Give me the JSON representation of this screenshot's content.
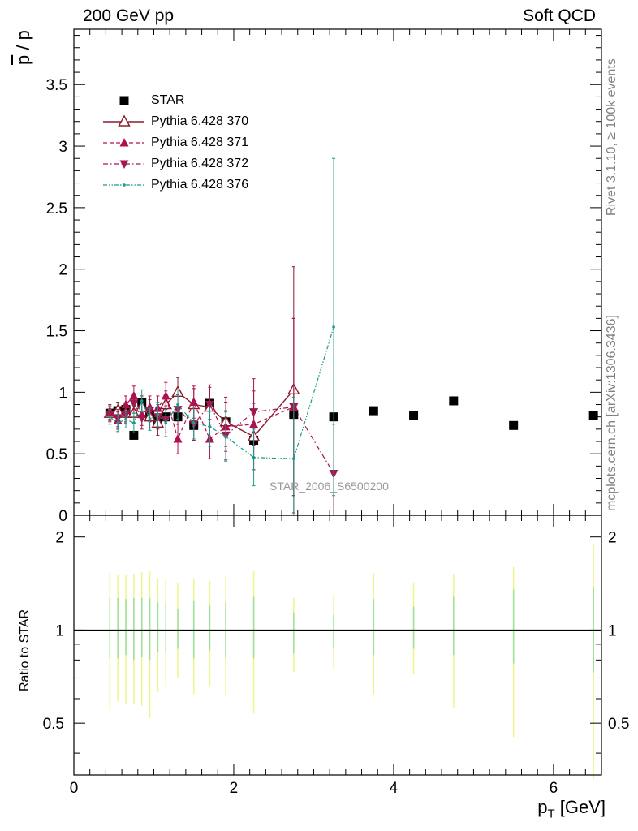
{
  "header": {
    "left": "200 GeV pp",
    "right": "Soft QCD"
  },
  "side_labels": {
    "rivet": "Rivet 3.1.10, ≥ 100k events",
    "mcplots": "mcplots.cern.ch [arXiv:1306.3436]"
  },
  "analysis_label": "STAR_2006_S6500200",
  "colors": {
    "star": "#000000",
    "p370": "#8b1a2b",
    "p371": "#b0104f",
    "p372": "#a0184e",
    "p376": "#1a9a8a",
    "ratio_band_outer": "#eef58a",
    "ratio_band_inner": "#9be09b"
  },
  "chart_data": [
    {
      "type": "scatter",
      "title": "",
      "ylabel_main": "p",
      "ylabel_over": "p",
      "ylabel_sep": " / ",
      "xlabel": "p",
      "xlabel_sub": "T",
      "xlabel_unit": " [GeV]",
      "xlim": [
        0,
        6.6
      ],
      "ylim": [
        0,
        3.95
      ],
      "xticks": [
        "0",
        "2",
        "4",
        "6"
      ],
      "yticks": [
        "0",
        "0.5",
        "1",
        "1.5",
        "2",
        "2.5",
        "3",
        "3.5"
      ],
      "legend_position": "top-left",
      "series": [
        {
          "name": "STAR",
          "marker": "square",
          "x": [
            0.45,
            0.55,
            0.65,
            0.75,
            0.85,
            0.95,
            1.05,
            1.15,
            1.3,
            1.5,
            1.7,
            1.9,
            2.25,
            2.75,
            3.25,
            3.75,
            4.25,
            4.75,
            5.5,
            6.5
          ],
          "y": [
            0.83,
            0.85,
            0.86,
            0.65,
            0.92,
            0.82,
            0.78,
            0.8,
            0.8,
            0.73,
            0.91,
            0.76,
            0.61,
            0.82,
            0.8,
            0.85,
            0.81,
            0.93,
            0.73,
            0.81
          ]
        },
        {
          "name": "Pythia 6.428 370",
          "marker": "triangle-up-open",
          "linestyle": "solid",
          "x": [
            0.45,
            0.55,
            0.65,
            0.75,
            0.85,
            0.95,
            1.05,
            1.15,
            1.3,
            1.5,
            1.7,
            1.9,
            2.25,
            2.75
          ],
          "y": [
            0.83,
            0.85,
            0.83,
            0.83,
            0.88,
            0.8,
            0.75,
            0.9,
            1.0,
            0.9,
            0.88,
            0.76,
            0.64,
            1.02
          ],
          "yerr": [
            0.06,
            0.07,
            0.07,
            0.08,
            0.09,
            0.09,
            0.1,
            0.11,
            0.12,
            0.13,
            0.16,
            0.2,
            0.27,
            1.0
          ]
        },
        {
          "name": "Pythia 6.428 371",
          "marker": "triangle-up",
          "linestyle": "dashed",
          "x": [
            0.45,
            0.55,
            0.65,
            0.75,
            0.85,
            0.95,
            1.05,
            1.15,
            1.3,
            1.5,
            1.7,
            1.9,
            2.25,
            2.75
          ],
          "y": [
            0.84,
            0.77,
            0.9,
            0.97,
            0.82,
            0.88,
            0.87,
            0.97,
            0.62,
            0.92,
            0.62,
            0.72,
            0.74,
            0.88
          ],
          "yerr": [
            0.06,
            0.07,
            0.07,
            0.08,
            0.09,
            0.09,
            0.1,
            0.11,
            0.12,
            0.13,
            0.16,
            0.2,
            0.27,
            0.72
          ]
        },
        {
          "name": "Pythia 6.428 372",
          "marker": "triangle-down",
          "linestyle": "dashdot",
          "x": [
            0.45,
            0.55,
            0.65,
            0.75,
            0.85,
            0.95,
            1.05,
            1.15,
            1.3,
            1.5,
            1.7,
            1.9,
            2.25,
            2.75,
            3.25
          ],
          "y": [
            0.82,
            0.79,
            0.82,
            0.91,
            0.79,
            0.85,
            0.8,
            0.78,
            0.86,
            0.74,
            0.9,
            0.65,
            0.84,
            0.88,
            0.34
          ],
          "yerr": [
            0.06,
            0.07,
            0.07,
            0.08,
            0.09,
            0.09,
            0.1,
            0.11,
            0.12,
            0.13,
            0.16,
            0.2,
            0.27,
            0.72,
            0.4
          ]
        },
        {
          "name": "Pythia 6.428 376",
          "marker": "dot",
          "linestyle": "dashdotdot",
          "x": [
            0.45,
            0.55,
            0.65,
            0.75,
            0.85,
            0.95,
            1.05,
            1.15,
            1.3,
            1.5,
            1.7,
            1.9,
            2.25,
            2.75,
            3.25
          ],
          "y": [
            0.8,
            0.75,
            0.78,
            0.75,
            0.93,
            0.78,
            0.82,
            0.75,
            0.9,
            0.75,
            0.72,
            0.64,
            0.47,
            0.46,
            1.53
          ],
          "yerr": [
            0.06,
            0.07,
            0.07,
            0.08,
            0.09,
            0.09,
            0.1,
            0.11,
            0.12,
            0.13,
            0.16,
            0.2,
            0.23,
            0.5,
            1.37
          ]
        }
      ]
    },
    {
      "type": "scatter",
      "title": "",
      "ylabel": "Ratio to STAR",
      "xlim": [
        0,
        6.6
      ],
      "ylim": [
        0.34,
        2.35
      ],
      "yscale": "log",
      "yticks": [
        "0.5",
        "1",
        "2"
      ],
      "reference_line": 1,
      "band_x": [
        0.45,
        0.55,
        0.65,
        0.75,
        0.85,
        0.95,
        1.05,
        1.15,
        1.3,
        1.5,
        1.7,
        1.9,
        2.25,
        2.75,
        3.25,
        3.75,
        4.25,
        4.75,
        5.5,
        6.5
      ],
      "band_outer_lo": [
        0.55,
        0.59,
        0.58,
        0.58,
        0.57,
        0.52,
        0.63,
        0.66,
        0.7,
        0.62,
        0.66,
        0.61,
        0.54,
        0.73,
        0.75,
        0.62,
        0.72,
        0.56,
        0.45,
        0.33
      ],
      "band_outer_hi": [
        1.53,
        1.51,
        1.51,
        1.52,
        1.54,
        1.55,
        1.47,
        1.46,
        1.42,
        1.47,
        1.44,
        1.5,
        1.55,
        1.27,
        1.3,
        1.53,
        1.42,
        1.52,
        1.6,
        1.9
      ],
      "band_inner_lo": [
        0.81,
        0.81,
        0.83,
        0.8,
        0.82,
        0.8,
        0.85,
        0.85,
        0.87,
        0.81,
        0.86,
        0.81,
        0.81,
        0.84,
        0.87,
        0.83,
        0.87,
        0.83,
        0.78,
        0.73
      ],
      "band_inner_hi": [
        1.27,
        1.27,
        1.26,
        1.27,
        1.27,
        1.27,
        1.23,
        1.22,
        1.17,
        1.24,
        1.2,
        1.23,
        1.28,
        1.14,
        1.12,
        1.26,
        1.19,
        1.28,
        1.35,
        1.38
      ]
    }
  ]
}
